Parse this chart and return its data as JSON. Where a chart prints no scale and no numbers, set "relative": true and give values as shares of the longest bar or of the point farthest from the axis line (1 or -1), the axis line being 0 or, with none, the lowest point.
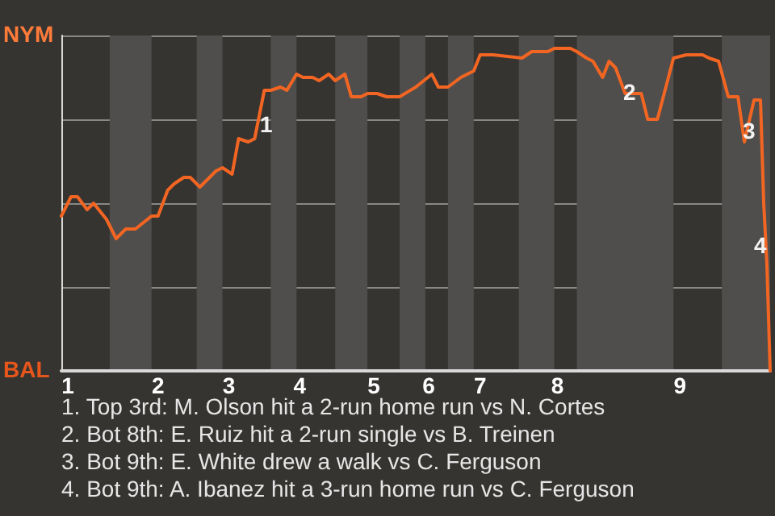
{
  "chart_data": {
    "type": "line",
    "relative": true,
    "categories": [
      null,
      null,
      "1",
      null,
      null,
      null,
      null,
      null,
      null,
      null,
      null,
      null,
      null,
      null,
      null,
      null,
      null,
      null,
      null,
      null,
      null,
      null,
      null,
      null,
      null,
      null,
      null,
      null,
      null,
      null,
      "2",
      null,
      null,
      null,
      null,
      null,
      null,
      null,
      null,
      null,
      null,
      null,
      null,
      null,
      null,
      null,
      null,
      null,
      null,
      null,
      null,
      null,
      "3",
      null,
      null,
      null,
      null,
      null,
      null,
      null,
      null,
      null,
      null,
      null,
      null,
      null,
      null,
      null,
      null,
      null,
      null,
      null,
      null,
      null,
      "4",
      null,
      null,
      null,
      null,
      null,
      null,
      null,
      null,
      null,
      null,
      null,
      null,
      null,
      null,
      null,
      null,
      null,
      null,
      null,
      null,
      null,
      null,
      "5",
      null,
      null,
      null,
      null,
      null,
      null,
      null,
      null,
      null,
      null,
      null,
      null,
      null,
      null,
      null,
      null,
      "6",
      null,
      null,
      null,
      null,
      null,
      null,
      null,
      null,
      null,
      null,
      null,
      null,
      null,
      null,
      null,
      "7",
      null,
      null,
      null,
      null,
      null,
      null,
      null,
      null,
      null,
      null,
      null,
      null,
      null,
      null,
      null,
      null,
      null,
      null,
      null,
      null,
      null,
      null,
      null,
      "8",
      null,
      null,
      null,
      null,
      null,
      null,
      null,
      null,
      null,
      null,
      null,
      null,
      null,
      null,
      null,
      null,
      null,
      null,
      null,
      null,
      null,
      null,
      null,
      null,
      null,
      null,
      null,
      null,
      null,
      null,
      null,
      null,
      null,
      null,
      null,
      null,
      null,
      "9",
      null,
      null,
      null,
      null,
      null,
      null,
      null,
      null,
      null,
      null,
      null,
      null,
      null,
      null,
      null,
      null,
      null,
      null,
      null,
      null,
      null,
      null,
      null,
      null,
      null,
      null,
      null,
      null
    ],
    "values": [
      0.48,
      null,
      null,
      0.54,
      null,
      0.54,
      null,
      null,
      0.5,
      null,
      0.52,
      null,
      null,
      null,
      0.47,
      null,
      null,
      0.41,
      null,
      null,
      0.44,
      null,
      null,
      0.44,
      null,
      null,
      null,
      null,
      0.48,
      null,
      0.48,
      null,
      null,
      0.56,
      null,
      0.58,
      null,
      null,
      0.6,
      null,
      0.6,
      null,
      null,
      0.57,
      null,
      null,
      null,
      null,
      0.62,
      null,
      0.63,
      null,
      null,
      0.61,
      null,
      0.72,
      null,
      null,
      0.71,
      null,
      0.72,
      null,
      null,
      0.87,
      null,
      0.87,
      null,
      null,
      0.88,
      null,
      0.87,
      null,
      null,
      0.92,
      null,
      0.91,
      null,
      null,
      0.91,
      null,
      0.9,
      null,
      null,
      0.92,
      null,
      0.9,
      null,
      null,
      0.92,
      null,
      0.85,
      null,
      null,
      0.85,
      null,
      0.86,
      null,
      null,
      0.86,
      null,
      null,
      0.85,
      null,
      null,
      null,
      0.85,
      null,
      null,
      null,
      null,
      0.88,
      null,
      null,
      null,
      null,
      0.92,
      null,
      0.88,
      null,
      null,
      0.88,
      null,
      null,
      null,
      0.91,
      null,
      null,
      null,
      0.93,
      null,
      0.98,
      null,
      null,
      null,
      0.98,
      null,
      null,
      null,
      null,
      null,
      null,
      null,
      null,
      0.97,
      null,
      null,
      0.99,
      null,
      null,
      0.99,
      null,
      0.99,
      null,
      1,
      null,
      null,
      null,
      null,
      1,
      null,
      0.99,
      null,
      null,
      0.97,
      null,
      0.96,
      null,
      null,
      0.91,
      null,
      0.96,
      null,
      0.94,
      null,
      null,
      0.86,
      null,
      null,
      null,
      null,
      0.86,
      null,
      0.78,
      null,
      null,
      0.78,
      null,
      null,
      null,
      null,
      0.97,
      null,
      null,
      null,
      0.98,
      null,
      null,
      null,
      null,
      0.98,
      null,
      0.97,
      null,
      null,
      0.96,
      null,
      null,
      0.85,
      null,
      null,
      0.85,
      null,
      0.71,
      null,
      null,
      0.84,
      null,
      0.84,
      0.52,
      0.33,
      0
    ],
    "color": "#f26522",
    "grid": "y",
    "annotations": [
      "1",
      "2",
      "3",
      "4",
      "NYM",
      "BAL",
      "1. Top 3rd: M. Olson hit a 2-run home run vs N. Cortes",
      "2. Bot 8th: E. Ruiz hit a 2-run single vs B. Treinen",
      "3. Bot 9th: E. White drew a walk vs C. Ferguson",
      "4. Bot 9th: A. Ibanez hit a 3-run home run vs C. Ferguson"
    ],
    "marker": "none",
    "line_style": "solid"
  }
}
